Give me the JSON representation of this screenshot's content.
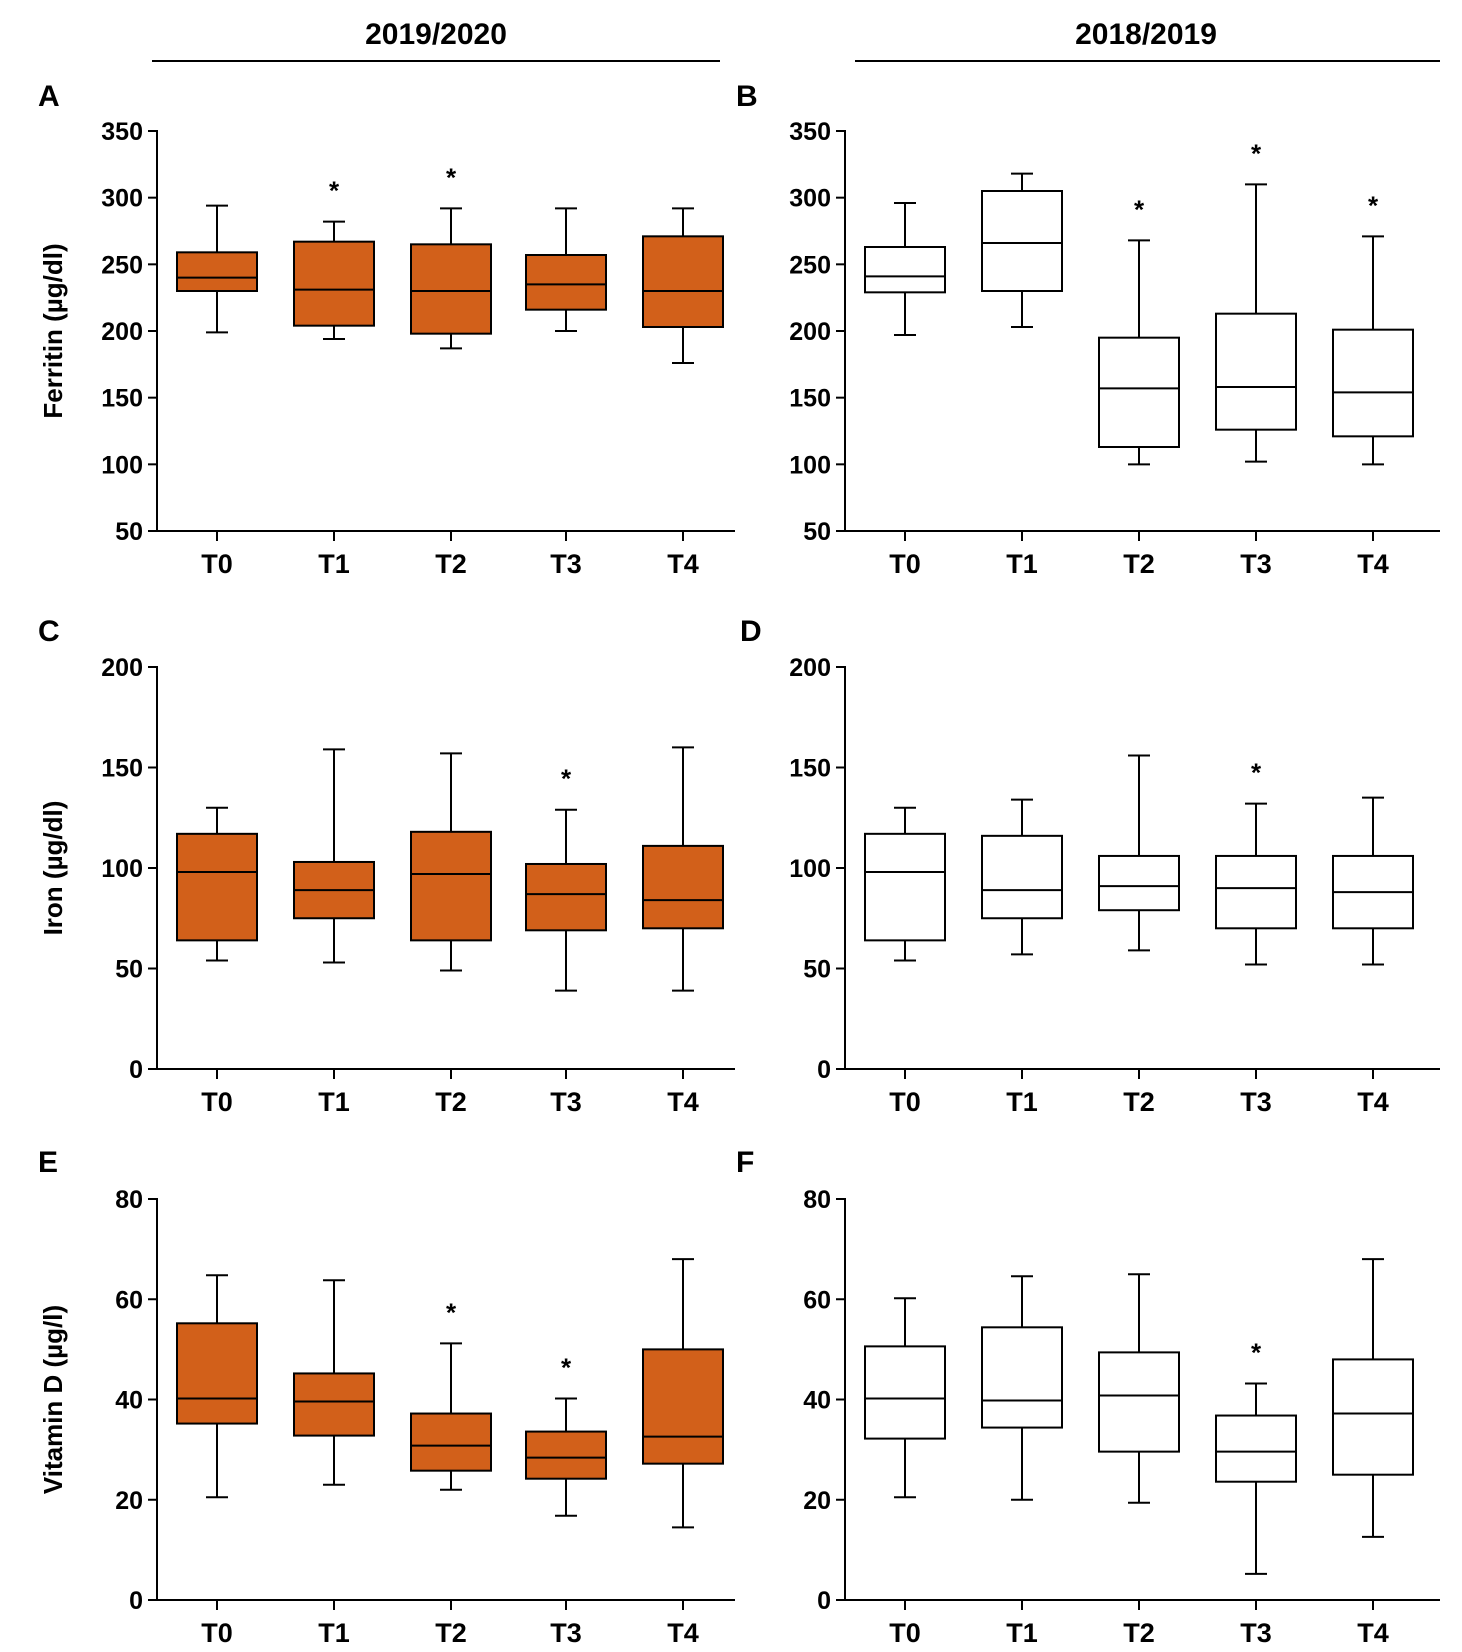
{
  "figure": {
    "left_header": "2019/2020",
    "right_header": "2018/2019",
    "colors": {
      "filled": "#d2601a",
      "outline": "#000000",
      "open": "#ffffff"
    }
  },
  "chart_data": [
    {
      "panel": "A",
      "type": "box",
      "ylabel": "Ferritin (µg/dl)",
      "ylim": [
        50,
        350
      ],
      "yticks": [
        50,
        100,
        150,
        200,
        250,
        300,
        350
      ],
      "fill": "#d2601a",
      "categories": [
        "T0",
        "T1",
        "T2",
        "T3",
        "T4"
      ],
      "boxes": [
        {
          "min": 199,
          "q1": 230,
          "median": 240,
          "q3": 259,
          "max": 294,
          "star": false
        },
        {
          "min": 194,
          "q1": 204,
          "median": 231,
          "q3": 267,
          "max": 282,
          "star": true
        },
        {
          "min": 187,
          "q1": 198,
          "median": 230,
          "q3": 265,
          "max": 292,
          "star": true
        },
        {
          "min": 200,
          "q1": 216,
          "median": 235,
          "q3": 257,
          "max": 292,
          "star": false
        },
        {
          "min": 176,
          "q1": 203,
          "median": 230,
          "q3": 271,
          "max": 292,
          "star": false
        }
      ]
    },
    {
      "panel": "B",
      "type": "box",
      "ylabel": "",
      "ylim": [
        50,
        350
      ],
      "yticks": [
        50,
        100,
        150,
        200,
        250,
        300,
        350
      ],
      "fill": "#ffffff",
      "categories": [
        "T0",
        "T1",
        "T2",
        "T3",
        "T4"
      ],
      "boxes": [
        {
          "min": 197,
          "q1": 229,
          "median": 241,
          "q3": 263,
          "max": 296,
          "star": false
        },
        {
          "min": 203,
          "q1": 230,
          "median": 266,
          "q3": 305,
          "max": 318,
          "star": false
        },
        {
          "min": 100,
          "q1": 113,
          "median": 157,
          "q3": 195,
          "max": 268,
          "star": true
        },
        {
          "min": 102,
          "q1": 126,
          "median": 158,
          "q3": 213,
          "max": 310,
          "star": true
        },
        {
          "min": 100,
          "q1": 121,
          "median": 154,
          "q3": 201,
          "max": 271,
          "star": true
        }
      ]
    },
    {
      "panel": "C",
      "type": "box",
      "ylabel": "Iron (µg/dl)",
      "ylim": [
        0,
        200
      ],
      "yticks": [
        0,
        50,
        100,
        150,
        200
      ],
      "fill": "#d2601a",
      "categories": [
        "T0",
        "T1",
        "T2",
        "T3",
        "T4"
      ],
      "boxes": [
        {
          "min": 54,
          "q1": 64,
          "median": 98,
          "q3": 117,
          "max": 130,
          "star": false
        },
        {
          "min": 53,
          "q1": 75,
          "median": 89,
          "q3": 103,
          "max": 159,
          "star": false
        },
        {
          "min": 49,
          "q1": 64,
          "median": 97,
          "q3": 118,
          "max": 157,
          "star": false
        },
        {
          "min": 39,
          "q1": 69,
          "median": 87,
          "q3": 102,
          "max": 129,
          "star": true
        },
        {
          "min": 39,
          "q1": 70,
          "median": 84,
          "q3": 111,
          "max": 160,
          "star": false
        }
      ]
    },
    {
      "panel": "D",
      "type": "box",
      "ylabel": "",
      "ylim": [
        0,
        200
      ],
      "yticks": [
        0,
        50,
        100,
        150,
        200
      ],
      "fill": "#ffffff",
      "categories": [
        "T0",
        "T1",
        "T2",
        "T3",
        "T4"
      ],
      "boxes": [
        {
          "min": 54,
          "q1": 64,
          "median": 98,
          "q3": 117,
          "max": 130,
          "star": false
        },
        {
          "min": 57,
          "q1": 75,
          "median": 89,
          "q3": 116,
          "max": 134,
          "star": false
        },
        {
          "min": 59,
          "q1": 79,
          "median": 91,
          "q3": 106,
          "max": 156,
          "star": false
        },
        {
          "min": 52,
          "q1": 70,
          "median": 90,
          "q3": 106,
          "max": 132,
          "star": true
        },
        {
          "min": 52,
          "q1": 70,
          "median": 88,
          "q3": 106,
          "max": 135,
          "star": false
        }
      ]
    },
    {
      "panel": "E",
      "type": "box",
      "ylabel": "Vitamin D (µg/l)",
      "ylim": [
        0,
        80
      ],
      "yticks": [
        0,
        20,
        40,
        60,
        80
      ],
      "fill": "#d2601a",
      "categories": [
        "T0",
        "T1",
        "T2",
        "T3",
        "T4"
      ],
      "boxes": [
        {
          "min": 20.5,
          "q1": 35.2,
          "median": 40.2,
          "q3": 55.2,
          "max": 64.8,
          "star": false
        },
        {
          "min": 23,
          "q1": 32.8,
          "median": 39.6,
          "q3": 45.2,
          "max": 63.8,
          "star": false
        },
        {
          "min": 22,
          "q1": 25.8,
          "median": 30.8,
          "q3": 37.2,
          "max": 51.2,
          "star": true
        },
        {
          "min": 16.8,
          "q1": 24.2,
          "median": 28.4,
          "q3": 33.6,
          "max": 40.2,
          "star": true
        },
        {
          "min": 14.5,
          "q1": 27.2,
          "median": 32.6,
          "q3": 50.0,
          "max": 68.0,
          "star": false
        }
      ]
    },
    {
      "panel": "F",
      "type": "box",
      "ylabel": "",
      "ylim": [
        0,
        80
      ],
      "yticks": [
        0,
        20,
        40,
        60,
        80
      ],
      "fill": "#ffffff",
      "categories": [
        "T0",
        "T1",
        "T2",
        "T3",
        "T4"
      ],
      "boxes": [
        {
          "min": 20.5,
          "q1": 32.2,
          "median": 40.2,
          "q3": 50.6,
          "max": 60.2,
          "star": false
        },
        {
          "min": 20,
          "q1": 34.4,
          "median": 39.8,
          "q3": 54.4,
          "max": 64.6,
          "star": false
        },
        {
          "min": 19.4,
          "q1": 29.6,
          "median": 40.8,
          "q3": 49.4,
          "max": 65,
          "star": false
        },
        {
          "min": 5.2,
          "q1": 23.6,
          "median": 29.6,
          "q3": 36.8,
          "max": 43.2,
          "star": true
        },
        {
          "min": 12.6,
          "q1": 25.0,
          "median": 37.2,
          "q3": 48.0,
          "max": 68.0,
          "star": false
        }
      ]
    }
  ]
}
